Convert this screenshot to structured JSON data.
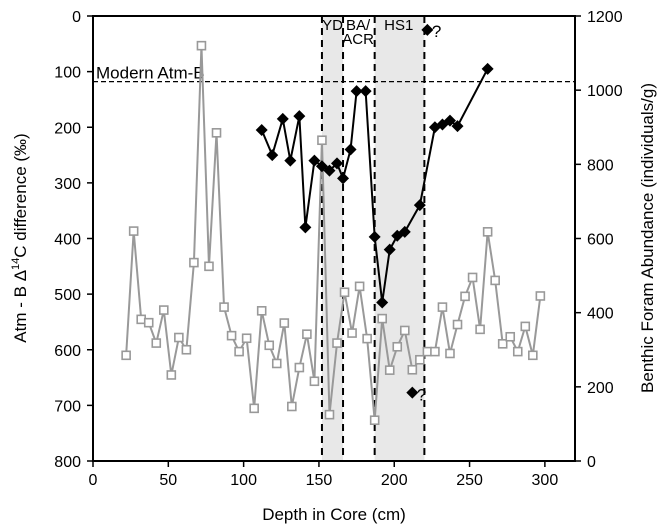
{
  "chart_data": {
    "type": "line",
    "xlabel": "Depth in Core (cm)",
    "ylabel_left": "Atm - B Δ",
    "ylabel_left_sup": "14",
    "ylabel_left_tail": "C difference (‰)",
    "ylabel_right": "Benthic Foram Abundance (individuals/g)",
    "xlim": [
      0,
      320
    ],
    "ylim_left": [
      800,
      0
    ],
    "ylim_right": [
      0,
      1200
    ],
    "x_ticks": [
      0,
      50,
      100,
      150,
      200,
      250,
      300
    ],
    "y_left_ticks": [
      0,
      100,
      200,
      300,
      400,
      500,
      600,
      700,
      800
    ],
    "y_right_ticks": [
      0,
      200,
      400,
      600,
      800,
      1000,
      1200
    ],
    "grid": false,
    "legend": "none",
    "series": [
      {
        "axis": "right",
        "color": "#999999",
        "marker": "open-square",
        "x": [
          22,
          27,
          32,
          37,
          42,
          47,
          52,
          57,
          62,
          67,
          72,
          77,
          82,
          87,
          92,
          97,
          102,
          107,
          112,
          117,
          122,
          127,
          132,
          137,
          142,
          147,
          152,
          157,
          162,
          167,
          172,
          177,
          182,
          187,
          192,
          197,
          202,
          207,
          212,
          217,
          222,
          227,
          232,
          237,
          242,
          247,
          252,
          257,
          262,
          267,
          272,
          277,
          282,
          287,
          292,
          297
        ],
        "y": [
          285,
          620,
          382,
          373,
          318,
          407,
          232,
          333,
          300,
          535,
          1120,
          525,
          885,
          415,
          338,
          295,
          331,
          142,
          405,
          312,
          263,
          372,
          147,
          252,
          342,
          215,
          865,
          125,
          318,
          455,
          345,
          471,
          330,
          110,
          384,
          245,
          308,
          352,
          246,
          273,
          295,
          295,
          415,
          290,
          368,
          444,
          495,
          355,
          618,
          487,
          316,
          335,
          295,
          363,
          285,
          445
        ]
      },
      {
        "axis": "left",
        "color": "#000000",
        "marker": "filled-diamond",
        "x": [
          112,
          119,
          126,
          131,
          137,
          141,
          147,
          152,
          157,
          162,
          166,
          171,
          175,
          181,
          187,
          192,
          197,
          202,
          207,
          217,
          227,
          232,
          237,
          242,
          262
        ],
        "y": [
          205,
          250,
          185,
          260,
          180,
          380,
          260,
          270,
          278,
          265,
          292,
          240,
          135,
          135,
          397,
          515,
          420,
          395,
          388,
          340,
          200,
          195,
          188,
          198,
          95
        ]
      },
      {
        "axis": "left",
        "color": "#000000",
        "marker": "filled-diamond",
        "line": false,
        "x": [
          212
        ],
        "y": [
          677
        ]
      },
      {
        "axis": "left",
        "color": "#000000",
        "marker": "filled-diamond",
        "line": false,
        "x": [
          222
        ],
        "y": [
          25
        ]
      }
    ],
    "reference_line": {
      "axis": "left",
      "y": 118,
      "label": "Modern Atm-B"
    },
    "shaded_bands": [
      [
        152,
        166
      ],
      [
        187,
        220
      ]
    ],
    "vertical_lines": [
      152,
      166,
      187,
      220
    ],
    "zone_labels": [
      {
        "text": "YD",
        "x": 159
      },
      {
        "text": "BA/",
        "x": 176
      },
      {
        "text": "ACR",
        "x": 176
      },
      {
        "text": "HS1",
        "x": 203
      }
    ],
    "question_marks": [
      {
        "text": "?",
        "x": 225,
        "y": 27
      },
      {
        "text": "?",
        "x": 215,
        "y": 680
      }
    ]
  }
}
